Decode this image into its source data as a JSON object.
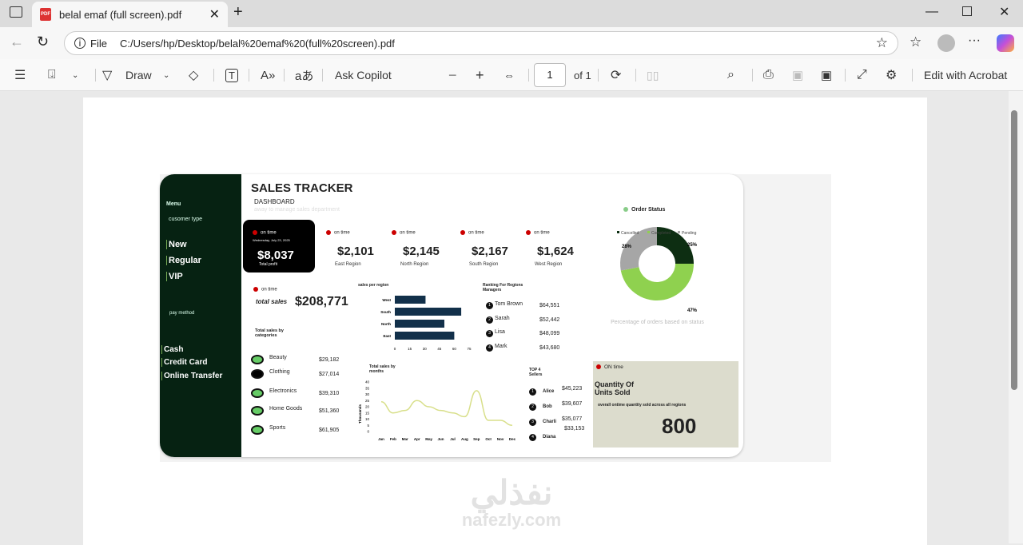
{
  "browser": {
    "tab_title": "belal emaf (full screen).pdf",
    "url_label": "File",
    "url": "C:/Users/hp/Desktop/belal%20emaf%20(full%20screen).pdf"
  },
  "toolbar": {
    "draw": "Draw",
    "ask_copilot": "Ask Copilot",
    "page_number": "1",
    "page_of": "of 1",
    "edit_acrobat": "Edit with Acrobat"
  },
  "dashboard": {
    "title": "SALES TRACKER",
    "subtitle": "DASHBOARD",
    "tagline": "away to manage sales department",
    "sidebar": {
      "menu": "Menu",
      "customer_type": "cusomer type",
      "customer_types": [
        "New",
        "Regular",
        "VIP"
      ],
      "pay_method": "pay method",
      "pay_methods": [
        "Cash",
        "Credit Card",
        "Online Transfer"
      ]
    },
    "profit": {
      "status": "on time",
      "date": "Wednesday, July 23, 2025",
      "value": "$8,037",
      "label": "Total profit"
    },
    "regions": [
      {
        "status": "on time",
        "value": "$2,101",
        "label": "East Region"
      },
      {
        "status": "on time",
        "value": "$2,145",
        "label": "North Region"
      },
      {
        "status": "on time",
        "value": "$2,167",
        "label": "South Region"
      },
      {
        "status": "on time",
        "value": "$1,624",
        "label": "West Region"
      }
    ],
    "total_sales": {
      "status": "on time",
      "label": "total sales",
      "value": "$208,771"
    },
    "categories": {
      "title": "Total sales by categories",
      "items": [
        {
          "name": "Beauty",
          "value": "$29,182"
        },
        {
          "name": "Clothing",
          "value": "$27,014"
        },
        {
          "name": "Electronics",
          "value": "$39,310"
        },
        {
          "name": "Home Goods",
          "value": "$51,360"
        },
        {
          "name": "Sports",
          "value": "$61,905"
        }
      ]
    },
    "ranking": {
      "title": "Ranking For Regions Managers",
      "items": [
        {
          "rank": "1",
          "name": "Tom Brown",
          "value": "$64,551"
        },
        {
          "rank": "2",
          "name": "Sarah",
          "value": "$52,442"
        },
        {
          "rank": "3",
          "name": "Lisa",
          "value": "$48,099"
        },
        {
          "rank": "4",
          "name": "Mark",
          "value": "$43,680"
        }
      ]
    },
    "top_sellers": {
      "title": "TOP 4 Sellers",
      "items": [
        {
          "rank": "1",
          "name": "Alice",
          "value": "$45,223"
        },
        {
          "rank": "2",
          "name": "Bob",
          "value": "$39,607"
        },
        {
          "rank": "3",
          "name": "Charli",
          "value": "$35,077"
        },
        {
          "rank": "4",
          "name": "Diana",
          "value": "$33,153"
        }
      ]
    },
    "order_status": {
      "title": "Order Status",
      "caption": "Percentage of orders based on status"
    },
    "units": {
      "status": "ON time",
      "title": "Quantity Of Units Sold",
      "desc": "overall ontime  quantity sold across all regions",
      "value": "800"
    }
  },
  "chart_data": [
    {
      "type": "bar",
      "title": "sales per region",
      "categories": [
        "West",
        "South",
        "North",
        "East"
      ],
      "values": [
        31,
        67,
        50,
        60
      ],
      "xticks": [
        "0",
        "15",
        "30",
        "45",
        "60",
        "75"
      ],
      "xlim": [
        0,
        75
      ],
      "color": "#12304a"
    },
    {
      "type": "line",
      "title": "Total sales by months",
      "ylabel": "Thousands",
      "categories": [
        "Jan",
        "Feb",
        "Mar",
        "Apr",
        "May",
        "Jun",
        "Jul",
        "Aug",
        "Sep",
        "Oct",
        "Nov",
        "Dec"
      ],
      "values": [
        24,
        15,
        17,
        25,
        20,
        17,
        15,
        12,
        33,
        9,
        9,
        5
      ],
      "yticks": [
        "0",
        "5",
        "10",
        "15",
        "20",
        "25",
        "30",
        "35",
        "40"
      ],
      "ylim": [
        0,
        40
      ],
      "color": "#d8df8a"
    },
    {
      "type": "pie",
      "legend": [
        "Cancelled",
        "Completed",
        "Pending"
      ],
      "values": [
        25,
        47,
        28
      ],
      "labels": [
        "25%",
        "47%",
        "28%"
      ],
      "colors": [
        "#0d2e12",
        "#8fd14f",
        "#a6a6a6"
      ]
    }
  ],
  "watermark": {
    "arabic": "نفذلي",
    "latin": "nafezly.com"
  }
}
